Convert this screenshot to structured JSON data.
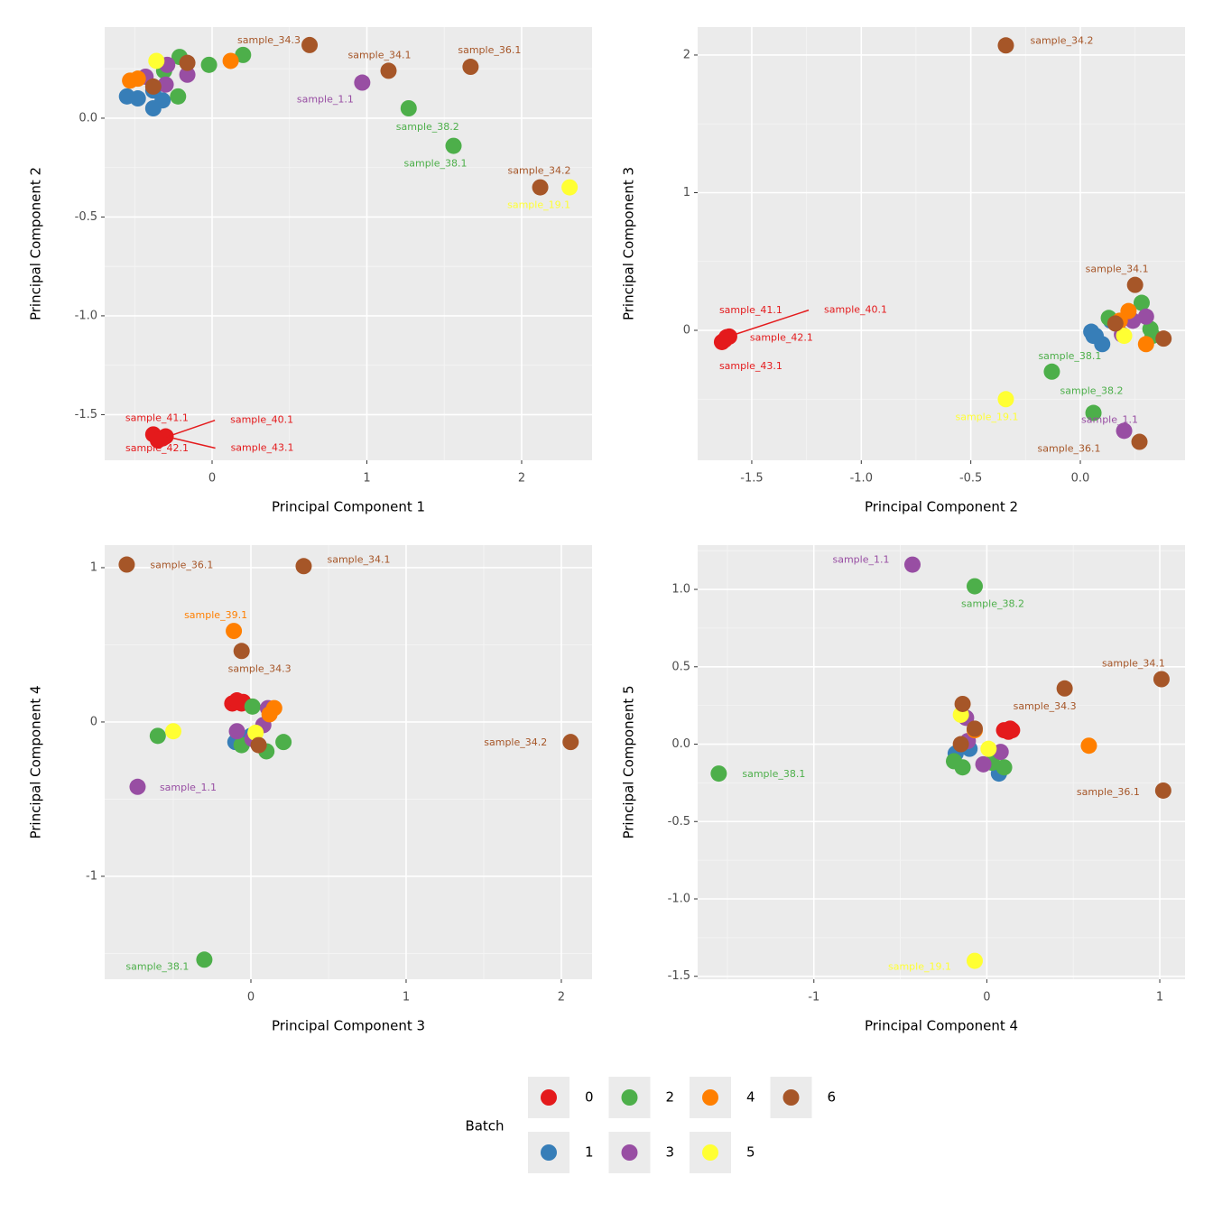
{
  "legend": {
    "title": "Batch",
    "entries": [
      {
        "name": "0",
        "color": "#e41a1c"
      },
      {
        "name": "1",
        "color": "#377eb8"
      },
      {
        "name": "2",
        "color": "#4daf4a"
      },
      {
        "name": "3",
        "color": "#984ea3"
      },
      {
        "name": "4",
        "color": "#ff7f00"
      },
      {
        "name": "5",
        "color": "#ffff33"
      },
      {
        "name": "6",
        "color": "#a65628"
      }
    ]
  },
  "chart_data": [
    {
      "type": "scatter",
      "x_label": "Principal Component 1",
      "y_label": "Principal Component 2",
      "xlim": [
        -0.694,
        2.455
      ],
      "ylim": [
        -1.731,
        0.461
      ],
      "xticks": [
        0,
        1,
        2
      ],
      "yticks": [
        {
          "value": 0,
          "label": "0.0"
        },
        -0.5,
        {
          "value": -1,
          "label": "-1.0"
        },
        -1.5
      ],
      "grid": true,
      "series": [
        {
          "x": [
            -0.38,
            -0.32,
            -0.35,
            -0.3
          ],
          "values": [
            -1.6,
            -1.62,
            -1.63,
            -1.61
          ],
          "labels": [
            "sample_41.1",
            "sample_40.1",
            "sample_42.1",
            "sample_43.1"
          ]
        },
        {
          "x": [
            -0.55,
            -0.48,
            -0.38,
            -0.32,
            -0.38
          ],
          "values": [
            0.11,
            0.1,
            0.05,
            0.09,
            0.14
          ],
          "labels": [
            null,
            null,
            null,
            null,
            null
          ]
        },
        {
          "x": [
            -0.21,
            -0.31,
            -0.22,
            -0.02,
            0.2,
            1.27,
            1.56
          ],
          "values": [
            0.31,
            0.24,
            0.11,
            0.27,
            0.32,
            0.05,
            -0.14
          ],
          "labels": [
            null,
            null,
            null,
            null,
            null,
            "sample_38.2",
            "sample_38.1"
          ]
        },
        {
          "x": [
            -0.43,
            -0.3,
            -0.16,
            -0.29,
            0.97
          ],
          "values": [
            0.21,
            0.17,
            0.22,
            0.27,
            0.18
          ],
          "labels": [
            null,
            null,
            null,
            null,
            "sample_1.1"
          ]
        },
        {
          "x": [
            -0.53,
            -0.48,
            0.12
          ],
          "values": [
            0.19,
            0.2,
            0.29
          ],
          "labels": [
            null,
            null,
            null
          ]
        },
        {
          "x": [
            -0.36,
            2.31
          ],
          "values": [
            0.29,
            -0.35
          ],
          "labels": [
            null,
            "sample_19.1"
          ]
        },
        {
          "x": [
            -0.38,
            -0.16,
            0.63,
            1.14,
            1.67,
            2.12
          ],
          "values": [
            0.16,
            0.28,
            0.37,
            0.24,
            0.26,
            -0.35
          ],
          "labels": [
            null,
            null,
            "sample_34.3",
            "sample_34.1",
            "sample_36.1",
            "sample_34.2"
          ]
        }
      ]
    },
    {
      "type": "scatter",
      "x_label": "Principal Component 2",
      "y_label": "Principal Component 3",
      "xlim": [
        -1.747,
        0.478
      ],
      "ylim": [
        -0.944,
        2.203
      ],
      "xticks": [
        -1.5,
        {
          "value": -1,
          "label": "-1.0"
        },
        -0.5,
        {
          "value": 0,
          "label": "0.0"
        }
      ],
      "yticks": [
        0,
        1,
        2
      ],
      "grid": true,
      "series": [
        {
          "x": [
            -1.636,
            -1.615,
            -1.624,
            -1.603
          ],
          "values": [
            -0.085,
            -0.05,
            -0.07,
            -0.045
          ],
          "labels": [
            "sample_41.1",
            "sample_40.1",
            "sample_42.1",
            "sample_43.1"
          ]
        },
        {
          "x": [
            0.05,
            0.07,
            0.1,
            0.14,
            0.06
          ],
          "values": [
            -0.01,
            -0.04,
            -0.1,
            0.07,
            -0.04
          ],
          "labels": [
            null,
            null,
            null,
            null,
            null
          ]
        },
        {
          "x": [
            0.28,
            0.13,
            0.32,
            0.33,
            -0.13,
            0.06
          ],
          "values": [
            0.2,
            0.09,
            0.01,
            -0.04,
            -0.3,
            -0.6
          ],
          "labels": [
            null,
            null,
            null,
            null,
            "sample_38.1",
            "sample_38.2"
          ]
        },
        {
          "x": [
            0.19,
            0.24,
            0.3,
            0.2
          ],
          "values": [
            -0.03,
            0.07,
            0.1,
            -0.73
          ],
          "labels": [
            null,
            null,
            null,
            "sample_1.1"
          ]
        },
        {
          "x": [
            0.22,
            0.3,
            0.18
          ],
          "values": [
            0.14,
            -0.1,
            0.07
          ],
          "labels": [
            null,
            null,
            null
          ]
        },
        {
          "x": [
            0.2,
            -0.34
          ],
          "values": [
            -0.04,
            -0.5
          ],
          "labels": [
            null,
            "sample_19.1"
          ]
        },
        {
          "x": [
            0.16,
            0.38,
            0.25,
            -0.34,
            0.27
          ],
          "values": [
            0.05,
            -0.06,
            0.33,
            2.07,
            -0.81
          ],
          "labels": [
            null,
            null,
            "sample_34.1",
            "sample_34.2",
            "sample_36.1"
          ]
        }
      ]
    },
    {
      "type": "scatter",
      "x_label": "Principal Component 3",
      "y_label": "Principal Component 4",
      "xlim": [
        -0.942,
        2.198
      ],
      "ylim": [
        -1.667,
        1.146
      ],
      "xticks": [
        0,
        1,
        2
      ],
      "yticks": [
        -1,
        0,
        1
      ],
      "grid": true,
      "series": [
        {
          "x": [
            -0.12,
            -0.09,
            -0.05,
            -0.06
          ],
          "values": [
            0.12,
            0.14,
            0.13,
            0.12
          ],
          "labels": [
            null,
            null,
            null,
            null
          ]
        },
        {
          "x": [
            -0.1,
            -0.05,
            0.0
          ],
          "values": [
            -0.13,
            -0.11,
            -0.09
          ],
          "labels": [
            null,
            null,
            null
          ]
        },
        {
          "x": [
            0.01,
            0.1,
            0.21,
            -0.6,
            -0.3,
            -0.06
          ],
          "values": [
            0.1,
            -0.19,
            -0.13,
            -0.09,
            -1.54,
            -0.15
          ],
          "labels": [
            null,
            null,
            null,
            null,
            "sample_38.1",
            null
          ]
        },
        {
          "x": [
            0.11,
            0.08,
            -0.09,
            0.01,
            -0.73
          ],
          "values": [
            0.09,
            -0.02,
            -0.06,
            -0.11,
            -0.42
          ],
          "labels": [
            null,
            null,
            null,
            null,
            "sample_1.1"
          ]
        },
        {
          "x": [
            0.15,
            0.12,
            -0.11
          ],
          "values": [
            0.09,
            0.05,
            0.59
          ],
          "labels": [
            null,
            null,
            "sample_39.1"
          ]
        },
        {
          "x": [
            -0.5,
            0.03
          ],
          "values": [
            -0.06,
            -0.07
          ],
          "labels": [
            null,
            null
          ]
        },
        {
          "x": [
            -0.8,
            0.34,
            -0.06,
            0.05,
            2.06
          ],
          "values": [
            1.02,
            1.01,
            0.46,
            -0.15,
            -0.13
          ],
          "labels": [
            "sample_36.1",
            "sample_34.1",
            "sample_34.3",
            null,
            "sample_34.2"
          ]
        }
      ]
    },
    {
      "type": "scatter",
      "x_label": "Principal Component 4",
      "y_label": "Principal Component 5",
      "xlim": [
        -1.672,
        1.146
      ],
      "ylim": [
        -1.519,
        1.286
      ],
      "xticks": [
        -1,
        0,
        1
      ],
      "yticks": [
        {
          "value": 1,
          "label": "1.0"
        },
        0.5,
        {
          "value": 0,
          "label": "0.0"
        },
        -0.5,
        {
          "value": -1,
          "label": "-1.0"
        },
        -1.5
      ],
      "grid": true,
      "series": [
        {
          "x": [
            0.1,
            0.135,
            0.146,
            0.125
          ],
          "values": [
            0.09,
            0.1,
            0.09,
            0.08
          ],
          "labels": [
            null,
            null,
            null,
            null
          ]
        },
        {
          "x": [
            -0.1,
            0.07,
            -0.18
          ],
          "values": [
            -0.03,
            -0.19,
            -0.06
          ],
          "labels": [
            null,
            null,
            null
          ]
        },
        {
          "x": [
            -0.07,
            -1.55,
            -0.19,
            -0.14,
            0.1,
            0.03
          ],
          "values": [
            1.02,
            -0.19,
            -0.11,
            -0.15,
            -0.15,
            -0.12
          ],
          "labels": [
            "sample_38.2",
            "sample_38.1",
            null,
            null,
            null,
            null
          ]
        },
        {
          "x": [
            -0.43,
            -0.12,
            -0.02,
            0.08,
            -0.11
          ],
          "values": [
            1.16,
            0.17,
            -0.13,
            -0.05,
            0.02
          ],
          "labels": [
            "sample_1.1",
            null,
            null,
            null,
            null
          ]
        },
        {
          "x": [
            0.59,
            -0.07
          ],
          "values": [
            -0.01,
            0.09
          ],
          "labels": [
            null,
            null
          ]
        },
        {
          "x": [
            -0.15,
            0.01,
            -0.07
          ],
          "values": [
            0.19,
            -0.03,
            -1.4
          ],
          "labels": [
            null,
            null,
            "sample_19.1"
          ]
        },
        {
          "x": [
            -0.14,
            0.45,
            1.01,
            1.02,
            -0.15,
            -0.07
          ],
          "values": [
            0.26,
            0.36,
            0.42,
            -0.3,
            0.0,
            0.1
          ],
          "labels": [
            null,
            "sample_34.3",
            "sample_34.1",
            "sample_36.1",
            null,
            null
          ]
        }
      ]
    }
  ]
}
